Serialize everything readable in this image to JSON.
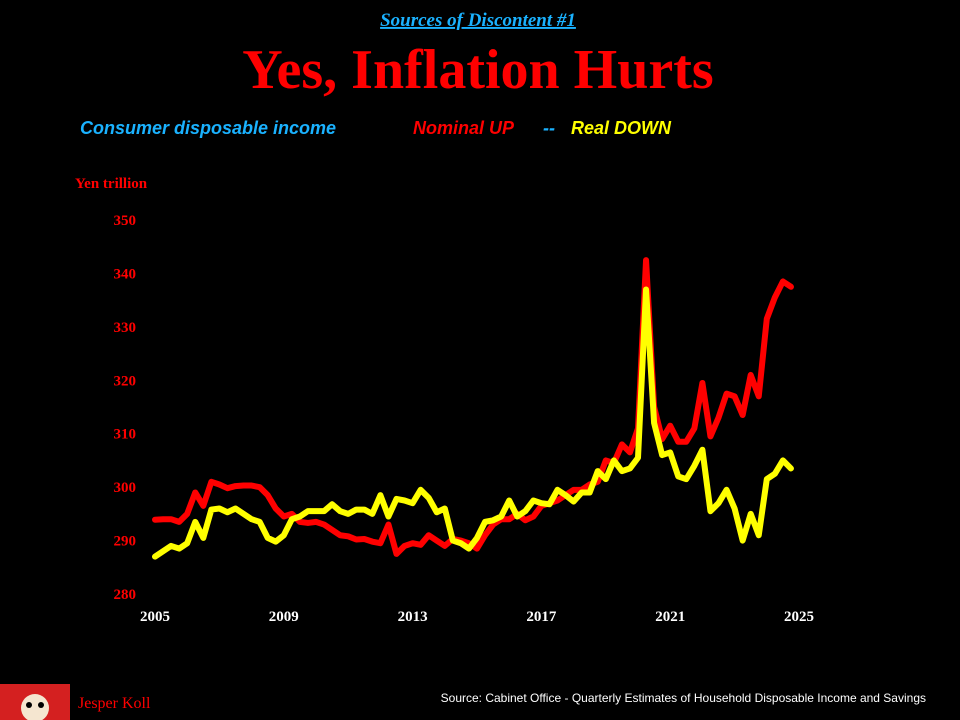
{
  "chart_data": {
    "type": "line",
    "header": "Sources of Discontent #1",
    "title": "Yes, Inflation Hurts",
    "subtitle": "Consumer disposable income",
    "separator": "--",
    "y_label": "Yen trillion",
    "x": [
      2005,
      2005.25,
      2005.5,
      2005.75,
      2006,
      2006.25,
      2006.5,
      2006.75,
      2007,
      2007.25,
      2007.5,
      2007.75,
      2008,
      2008.25,
      2008.5,
      2008.75,
      2009,
      2009.25,
      2009.5,
      2009.75,
      2010,
      2010.25,
      2010.5,
      2010.75,
      2011,
      2011.25,
      2011.5,
      2011.75,
      2012,
      2012.25,
      2012.5,
      2012.75,
      2013,
      2013.25,
      2013.5,
      2013.75,
      2014,
      2014.25,
      2014.5,
      2014.75,
      2015,
      2015.25,
      2015.5,
      2015.75,
      2016,
      2016.25,
      2016.5,
      2016.75,
      2017,
      2017.25,
      2017.5,
      2017.75,
      2018,
      2018.25,
      2018.5,
      2018.75,
      2019,
      2019.25,
      2019.5,
      2019.75,
      2020,
      2020.25,
      2020.5,
      2020.75,
      2021,
      2021.25,
      2021.5,
      2021.75,
      2022,
      2022.25,
      2022.5,
      2022.75,
      2023,
      2023.25,
      2023.5,
      2023.75,
      2024,
      2024.25,
      2024.5,
      2024.75
    ],
    "series": [
      {
        "name": "Nominal UP",
        "color": "#ff0000",
        "values": [
          293.9,
          294,
          294,
          293.5,
          295,
          299,
          296.5,
          301,
          300.5,
          299.8,
          300.2,
          300.3,
          300.3,
          300,
          298.5,
          296,
          294.5,
          295,
          293.5,
          293.3,
          293.5,
          293,
          292,
          291,
          290.8,
          290.2,
          290.3,
          289.8,
          289.5,
          293,
          287.5,
          289,
          289.5,
          289.2,
          291,
          290,
          289,
          290.3,
          290,
          289.5,
          288.5,
          291,
          293,
          294,
          294,
          295,
          293.8,
          294.5,
          296.5,
          297,
          297.5,
          298.5,
          299.5,
          299.5,
          300.5,
          301,
          305,
          304.5,
          308,
          306.5,
          311,
          342.5,
          315,
          309,
          311.5,
          308.5,
          308.5,
          311,
          319.5,
          309.5,
          313,
          317.5,
          317,
          313.5,
          321,
          317,
          331.5,
          335.5,
          338.5,
          337.5
        ]
      },
      {
        "name": "Real DOWN",
        "color": "#ffff00",
        "values": [
          287,
          288,
          289,
          288.5,
          289.5,
          293.5,
          290.5,
          295.8,
          296,
          295.3,
          296,
          295,
          294,
          293.5,
          290.5,
          289.8,
          291,
          294,
          294.5,
          295.5,
          295.5,
          295.5,
          296.8,
          295.5,
          295,
          295.8,
          295.8,
          295,
          298.5,
          294.5,
          297.8,
          297.5,
          297,
          299.5,
          298,
          295.3,
          296,
          290,
          289.5,
          288.5,
          290.5,
          293.5,
          293.8,
          294.5,
          297.5,
          294.5,
          295.5,
          297.5,
          297,
          296.8,
          299.5,
          298.5,
          297.3,
          299,
          299,
          303,
          301.5,
          305,
          303,
          303.5,
          305.5,
          337,
          312,
          306,
          306.5,
          302,
          301.5,
          304,
          307,
          295.5,
          297,
          299.5,
          296,
          290,
          295,
          291,
          301.5,
          302.5,
          305,
          303.5
        ]
      }
    ],
    "xlim": [
      2005,
      2025
    ],
    "xticks": [
      2005,
      2009,
      2013,
      2017,
      2021,
      2025
    ],
    "ylim": [
      280,
      350
    ],
    "yticks": [
      280,
      290,
      300,
      310,
      320,
      330,
      340,
      350
    ],
    "grid": false
  },
  "footer": {
    "source": "Source: Cabinet Office -  Quarterly Estimates of Household Disposable Income and Savings",
    "author": "Jesper Koll"
  }
}
